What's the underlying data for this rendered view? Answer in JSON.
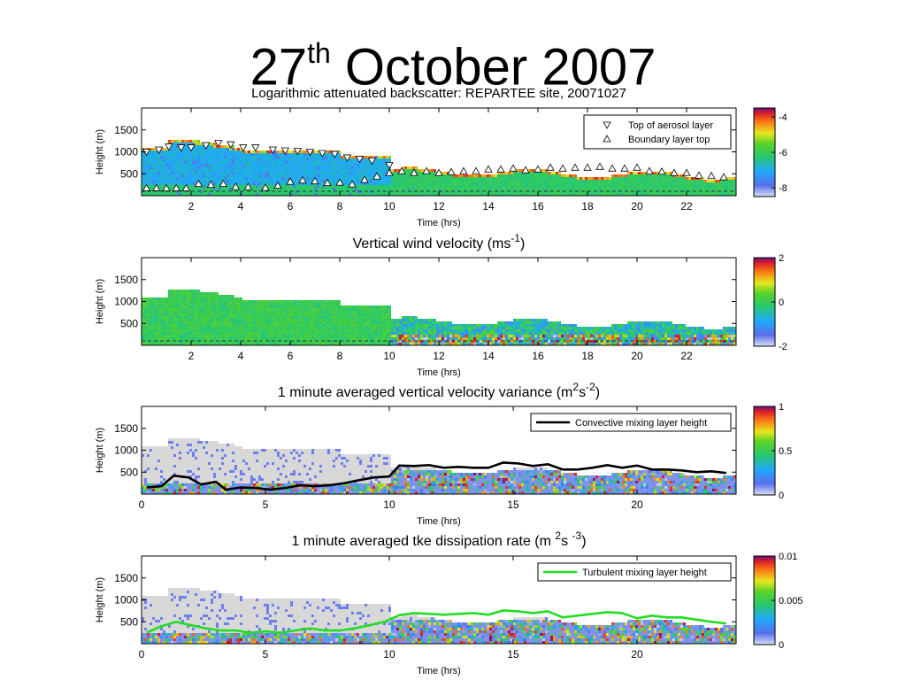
{
  "slide": {
    "title_main": "27",
    "title_sup": "th",
    "title_rest": " October 2007"
  },
  "chart_data": [
    {
      "type": "heatmap",
      "title": "Logarithmic attenuated backscatter: REPARTEE site, 20071027",
      "title_parts": [
        "Logarithmic attenuated backscatter: REPARTEE site, 20071027"
      ],
      "xlabel": "Time (hrs)",
      "ylabel": "Height (m)",
      "xlim": [
        0,
        24
      ],
      "ylim": [
        0,
        2000
      ],
      "xticks": [
        "2",
        "4",
        "6",
        "8",
        "10",
        "12",
        "14",
        "16",
        "18",
        "20",
        "22"
      ],
      "yticks": [
        "500",
        "1000",
        "1500"
      ],
      "colorbar": {
        "ticks": [
          "-4",
          "-6",
          "-8"
        ],
        "range": [
          -8.5,
          -3.5
        ]
      },
      "legend": {
        "placement": "top-right",
        "entries": [
          {
            "marker": "triangle-down",
            "label": "Top of aerosol layer"
          },
          {
            "marker": "triangle-up",
            "label": "Boundary layer top"
          }
        ]
      },
      "series": [
        {
          "name": "Top of aerosol layer",
          "x": [
            0.2,
            0.7,
            1.1,
            1.6,
            2.0,
            2.6,
            3.1,
            3.6,
            4.1,
            4.6,
            5.3,
            5.8,
            6.3,
            6.8,
            7.3,
            7.8,
            8.3,
            8.8,
            9.3,
            10.0
          ],
          "y": [
            1000,
            1050,
            1120,
            1100,
            1100,
            1150,
            1200,
            1170,
            1100,
            1100,
            1050,
            1030,
            1020,
            1000,
            970,
            950,
            870,
            840,
            800,
            700
          ]
        },
        {
          "name": "Boundary layer top",
          "x": [
            0.2,
            0.6,
            1.0,
            1.4,
            1.8,
            2.3,
            2.8,
            3.3,
            3.8,
            4.3,
            5.0,
            5.5,
            6.0,
            6.5,
            7.0,
            7.5,
            8.0,
            8.5,
            9.0,
            9.5,
            10.0,
            10.5,
            11.0,
            11.5,
            12.0,
            12.5,
            13.0,
            13.5,
            14.0,
            14.5,
            15.0,
            15.5,
            16.0,
            16.5,
            17.0,
            17.5,
            18.0,
            18.5,
            19.0,
            19.5,
            20.0,
            20.5,
            21.0,
            21.5,
            22.0,
            22.5,
            23.0,
            23.5
          ],
          "y": [
            170,
            170,
            170,
            170,
            170,
            270,
            250,
            270,
            200,
            200,
            180,
            230,
            320,
            350,
            330,
            290,
            300,
            260,
            360,
            440,
            520,
            560,
            520,
            560,
            520,
            540,
            560,
            560,
            600,
            600,
            620,
            580,
            600,
            640,
            620,
            640,
            640,
            660,
            620,
            620,
            640,
            560,
            550,
            520,
            520,
            460,
            450,
            420
          ]
        }
      ]
    },
    {
      "type": "heatmap",
      "title": "Vertical wind velocity (ms-1)",
      "title_parts": [
        "Vertical wind velocity (ms",
        "-1",
        ")"
      ],
      "xlabel": "Time (hrs)",
      "ylabel": "Height (m)",
      "xlim": [
        0,
        24
      ],
      "ylim": [
        0,
        2000
      ],
      "xticks": [
        "2",
        "4",
        "6",
        "8",
        "10",
        "12",
        "14",
        "16",
        "18",
        "20",
        "22"
      ],
      "yticks": [
        "500",
        "1000",
        "1500"
      ],
      "colorbar": {
        "ticks": [
          "2",
          "0",
          "-2"
        ],
        "range": [
          -2,
          2
        ]
      }
    },
    {
      "type": "heatmap",
      "title": "1 minute averaged vertical velocity variance (m2s-2)",
      "title_parts": [
        "1 minute averaged vertical velocity variance (m",
        "2",
        "s",
        "-2",
        ")"
      ],
      "xlabel": "Time (hrs)",
      "ylabel": "Height (m)",
      "xlim": [
        0,
        24
      ],
      "ylim": [
        0,
        2000
      ],
      "xticks": [
        "0",
        "5",
        "10",
        "15",
        "20"
      ],
      "yticks": [
        "500",
        "1000",
        "1500"
      ],
      "colorbar": {
        "ticks": [
          "1",
          "0.5",
          "0"
        ],
        "range": [
          0,
          1
        ]
      },
      "legend": {
        "placement": "top-right",
        "entries": [
          {
            "label": "Convective mixing layer height",
            "color": "#000000"
          }
        ]
      },
      "series": [
        {
          "name": "Convective mixing layer height",
          "x": [
            0.2,
            0.8,
            1.3,
            1.9,
            2.4,
            3.0,
            3.4,
            4.0,
            4.6,
            5.2,
            5.8,
            6.4,
            7.0,
            7.6,
            8.2,
            8.8,
            9.4,
            10.0,
            10.4,
            11.0,
            11.6,
            12.2,
            12.8,
            13.4,
            14.0,
            14.6,
            15.2,
            15.8,
            16.4,
            17.0,
            17.6,
            18.2,
            18.8,
            19.4,
            20.0,
            20.6,
            21.2,
            21.8,
            22.4,
            23.0,
            23.6
          ],
          "y": [
            150,
            180,
            420,
            380,
            220,
            280,
            100,
            150,
            140,
            100,
            140,
            200,
            180,
            200,
            250,
            320,
            380,
            400,
            650,
            640,
            660,
            600,
            620,
            600,
            600,
            720,
            700,
            640,
            680,
            560,
            560,
            600,
            660,
            600,
            650,
            560,
            560,
            540,
            500,
            520,
            480
          ]
        }
      ]
    },
    {
      "type": "heatmap",
      "title": "1 minute averaged tke dissipation rate (m 2s -3)",
      "title_parts": [
        "1 minute averaged tke dissipation rate (m ",
        "2",
        "s ",
        "-3",
        ")"
      ],
      "xlabel": "Time (hrs)",
      "ylabel": "Height (m)",
      "xlim": [
        0,
        24
      ],
      "ylim": [
        0,
        2000
      ],
      "xticks": [
        "0",
        "5",
        "10",
        "15",
        "20"
      ],
      "yticks": [
        "500",
        "1000",
        "1500"
      ],
      "colorbar": {
        "ticks": [
          "0.01",
          "0.005",
          "0"
        ],
        "range": [
          0,
          0.01
        ]
      },
      "legend": {
        "placement": "top-right",
        "entries": [
          {
            "label": "Turbulent mixing layer height",
            "color": "#22dd22"
          }
        ]
      },
      "series": [
        {
          "name": "Turbulent mixing layer height",
          "x": [
            0.2,
            0.8,
            1.4,
            2.0,
            2.6,
            3.2,
            3.8,
            4.4,
            5.0,
            5.6,
            6.2,
            6.8,
            7.4,
            8.0,
            8.6,
            9.2,
            9.8,
            10.4,
            11.0,
            11.6,
            12.2,
            12.8,
            13.4,
            14.0,
            14.6,
            15.2,
            15.8,
            16.4,
            17.0,
            17.6,
            18.2,
            18.8,
            19.4,
            20.0,
            20.6,
            21.2,
            21.8,
            22.4,
            23.0,
            23.6
          ],
          "y": [
            250,
            400,
            500,
            420,
            350,
            300,
            300,
            250,
            280,
            250,
            300,
            350,
            300,
            300,
            350,
            420,
            500,
            650,
            700,
            680,
            660,
            680,
            700,
            660,
            760,
            740,
            700,
            740,
            600,
            640,
            680,
            720,
            700,
            580,
            640,
            600,
            600,
            550,
            500,
            460
          ]
        }
      ]
    }
  ]
}
